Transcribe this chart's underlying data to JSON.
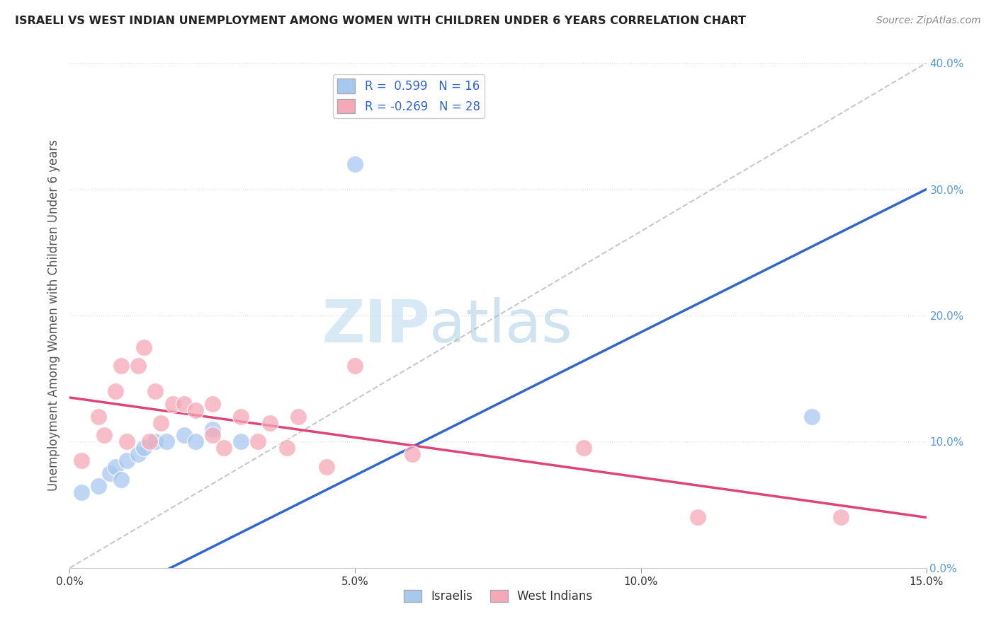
{
  "title": "ISRAELI VS WEST INDIAN UNEMPLOYMENT AMONG WOMEN WITH CHILDREN UNDER 6 YEARS CORRELATION CHART",
  "source": "Source: ZipAtlas.com",
  "ylabel": "Unemployment Among Women with Children Under 6 years",
  "xlim": [
    0.0,
    0.15
  ],
  "ylim": [
    0.0,
    0.4
  ],
  "x_ticks": [
    0.0,
    0.05,
    0.1,
    0.15
  ],
  "x_tick_labels": [
    "0.0%",
    "5.0%",
    "10.0%",
    "15.0%"
  ],
  "y_ticks_right": [
    0.0,
    0.1,
    0.2,
    0.3,
    0.4
  ],
  "y_tick_labels_right": [
    "0.0%",
    "10.0%",
    "20.0%",
    "30.0%",
    "40.0%"
  ],
  "israeli_color": "#a8c8f0",
  "israeli_line_color": "#3366cc",
  "west_indian_color": "#f5a8b8",
  "west_indian_line_color": "#dd4477",
  "israeli_R": 0.599,
  "israeli_N": 16,
  "west_indian_R": -0.269,
  "west_indian_N": 28,
  "watermark_zip": "ZIP",
  "watermark_atlas": "atlas",
  "background_color": "#ffffff",
  "israeli_x": [
    0.002,
    0.005,
    0.007,
    0.008,
    0.009,
    0.01,
    0.012,
    0.013,
    0.015,
    0.017,
    0.02,
    0.022,
    0.025,
    0.03,
    0.05,
    0.13
  ],
  "israeli_y": [
    0.06,
    0.065,
    0.075,
    0.08,
    0.07,
    0.085,
    0.09,
    0.095,
    0.1,
    0.1,
    0.105,
    0.1,
    0.11,
    0.1,
    0.32,
    0.12
  ],
  "west_indian_x": [
    0.002,
    0.005,
    0.006,
    0.008,
    0.009,
    0.01,
    0.012,
    0.013,
    0.014,
    0.015,
    0.016,
    0.018,
    0.02,
    0.022,
    0.025,
    0.025,
    0.027,
    0.03,
    0.033,
    0.035,
    0.038,
    0.04,
    0.045,
    0.05,
    0.06,
    0.09,
    0.11,
    0.135
  ],
  "west_indian_y": [
    0.085,
    0.12,
    0.105,
    0.14,
    0.16,
    0.1,
    0.16,
    0.175,
    0.1,
    0.14,
    0.115,
    0.13,
    0.13,
    0.125,
    0.13,
    0.105,
    0.095,
    0.12,
    0.1,
    0.115,
    0.095,
    0.12,
    0.08,
    0.16,
    0.09,
    0.095,
    0.04,
    0.04
  ],
  "dot_size": 300,
  "ref_line_color": "#bbbbbb",
  "grid_color": "#dddddd"
}
